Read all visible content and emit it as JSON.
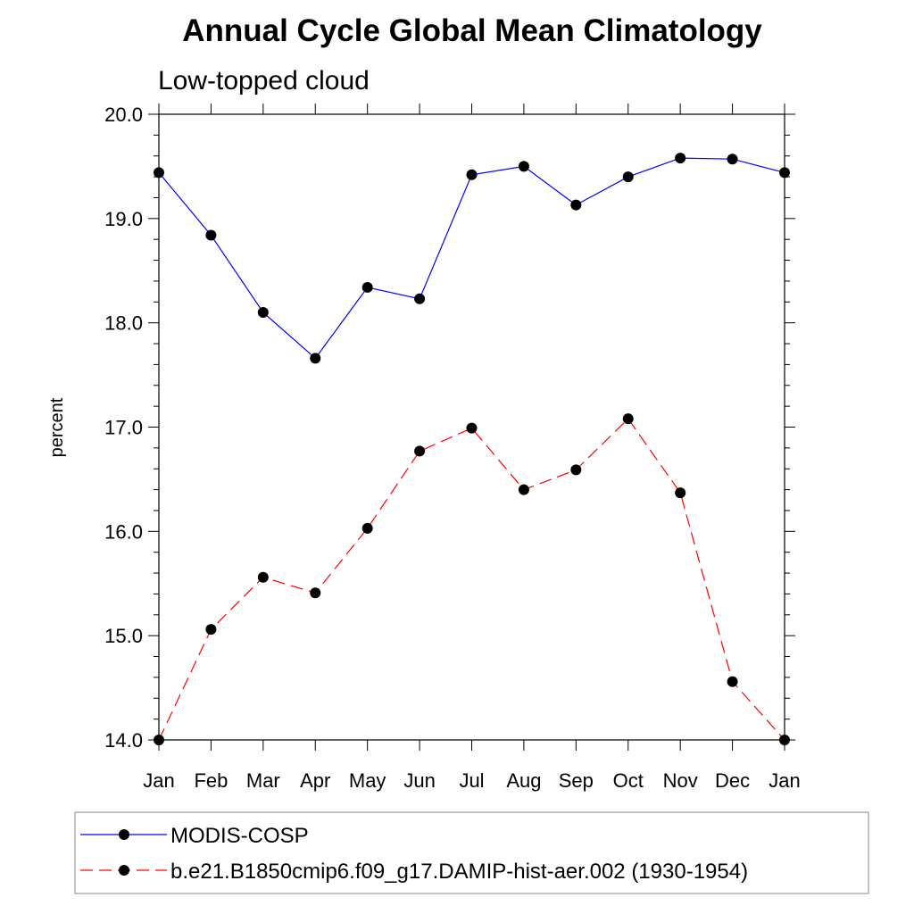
{
  "chart_data": {
    "type": "line",
    "title": "Annual Cycle Global Mean Climatology",
    "subtitle": "Low-topped cloud",
    "ylabel": "percent",
    "xlabel": "",
    "categories": [
      "Jan",
      "Feb",
      "Mar",
      "Apr",
      "May",
      "Jun",
      "Jul",
      "Aug",
      "Sep",
      "Oct",
      "Nov",
      "Dec",
      "Jan"
    ],
    "ylim": [
      14.0,
      20.0
    ],
    "yticks": [
      "14.0",
      "15.0",
      "16.0",
      "17.0",
      "18.0",
      "19.0",
      "20.0"
    ],
    "grid": false,
    "legend_position": "bottom",
    "series": [
      {
        "name": "MODIS-COSP",
        "color": "#0000ff",
        "line_style": "solid",
        "values": [
          19.44,
          18.84,
          18.1,
          17.66,
          18.34,
          18.23,
          19.42,
          19.5,
          19.13,
          19.4,
          19.58,
          19.57,
          19.44
        ]
      },
      {
        "name": "b.e21.B1850cmip6.f09_g17.DAMIP-hist-aer.002 (1930-1954)",
        "color": "#ff0000",
        "line_style": "dashed",
        "values": [
          14.0,
          15.06,
          15.56,
          15.41,
          16.03,
          16.77,
          16.99,
          16.4,
          16.59,
          17.08,
          16.37,
          14.56,
          14.0
        ]
      }
    ]
  }
}
